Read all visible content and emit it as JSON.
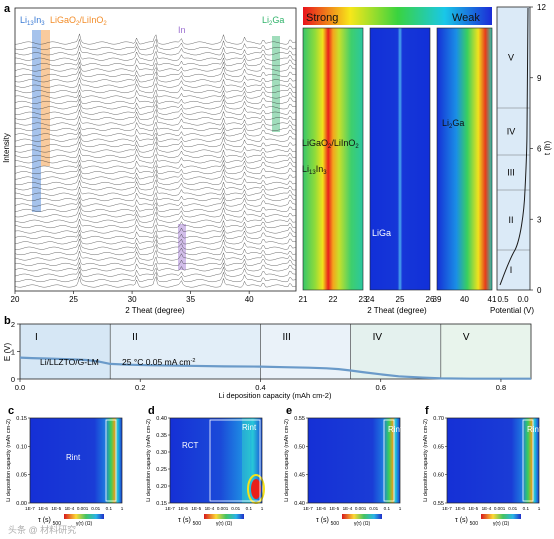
{
  "panel_labels": {
    "a": "a",
    "b": "b",
    "c": "c",
    "d": "d",
    "e": "e",
    "f": "f"
  },
  "colors": {
    "li13in3_band": "#3a7bd5",
    "ligao2_band": "#f28c28",
    "in_band": "#9b6fd0",
    "li2ga_band": "#2fb36a",
    "profile_line": "#6a9ac9",
    "region_fill": "#dbeaf7"
  },
  "panel_a": {
    "ylabel": "Intensity",
    "xlabel": "2 Theat (degree)",
    "xticks": [
      "20",
      "25",
      "30",
      "35",
      "40"
    ],
    "phase_labels": {
      "li13in3": "Li13In3",
      "ligao2": "LiGaO2/LiInO2",
      "in": "In",
      "li2ga": "Li2Ga"
    },
    "heatmap_legend": {
      "strong": "Strong",
      "weak": "Weak"
    },
    "heatmap_labels": {
      "ligao2": "LiGaO2/LiInO2",
      "li13in3": "Li13In3",
      "liga": "LiGa",
      "li2ga": "Li2Ga"
    },
    "heatmap_xlabel": "2 Theat (degree)",
    "heatmap1_xticks": [
      "21",
      "22",
      "23"
    ],
    "heatmap2_xticks": [
      "24",
      "25",
      "26"
    ],
    "heatmap3_xticks": [
      "39",
      "40",
      "41"
    ],
    "potential": {
      "xlabel": "Potential (V)",
      "xticks": [
        "0.5",
        "0.0"
      ],
      "ylabel": "t (h)",
      "yticks": [
        "0",
        "3",
        "6",
        "9",
        "12"
      ],
      "regions": [
        "I",
        "II",
        "III",
        "IV",
        "V"
      ]
    }
  },
  "chart_data": [
    {
      "type": "line",
      "panel": "b",
      "xlabel": "Li deposition capacity (mAh cm-2)",
      "ylabel": "E (V)",
      "xlim": [
        0,
        0.85
      ],
      "ylim": [
        0,
        2
      ],
      "xticks": [
        "0.0",
        "0.2",
        "0.4",
        "0.6",
        "0.8"
      ],
      "yticks": [
        "0",
        "1",
        "2"
      ],
      "annotation": "Li/LLZTO/G-LM",
      "conditions": "25 °C  0.05 mA cm-2",
      "regions": [
        "I",
        "II",
        "III",
        "IV",
        "V"
      ],
      "region_bounds": [
        0,
        0.15,
        0.4,
        0.55,
        0.7,
        0.85
      ],
      "x": [
        0,
        0.02,
        0.05,
        0.08,
        0.11,
        0.13,
        0.15,
        0.18,
        0.22,
        0.28,
        0.34,
        0.4,
        0.44,
        0.48,
        0.51,
        0.53,
        0.55,
        0.57,
        0.6,
        0.63,
        0.67,
        0.7,
        0.75,
        0.8,
        0.85
      ],
      "y": [
        0.78,
        0.76,
        0.74,
        0.72,
        0.69,
        0.64,
        0.55,
        0.52,
        0.5,
        0.48,
        0.46,
        0.45,
        0.43,
        0.41,
        0.39,
        0.36,
        0.31,
        0.25,
        0.17,
        0.1,
        0.05,
        0.02,
        0.01,
        0.01,
        0.01
      ]
    },
    {
      "type": "heatmap",
      "panel": "c",
      "xlabel": "τ (s)",
      "ylabel": "Li deposition capacity (mAh cm-2)",
      "ylim": [
        0.0,
        0.15
      ],
      "yticks": [
        "0.00",
        "0.05",
        "0.10",
        "0.15"
      ],
      "xticks": [
        "1E-7",
        "1E-6",
        "1E-5",
        "1E-4",
        "0.001",
        "0.01",
        "0.1",
        "1"
      ],
      "label": "Rint",
      "colorbar": {
        "min": "500",
        "label": "γ(τ) (Ω)"
      }
    },
    {
      "type": "heatmap",
      "panel": "d",
      "xlabel": "τ (s)",
      "ylabel": "Li deposition capacity (mAh cm-2)",
      "ylim": [
        0.15,
        0.4
      ],
      "yticks": [
        "0.15",
        "0.20",
        "0.25",
        "0.30",
        "0.35",
        "0.40"
      ],
      "xticks": [
        "1E-7",
        "1E-6",
        "1E-5",
        "1E-4",
        "0.001",
        "0.01",
        "0.1",
        "1"
      ],
      "labels": [
        "RCT",
        "Rint"
      ],
      "colorbar": {
        "min": "500",
        "label": "γ(τ) (Ω)"
      }
    },
    {
      "type": "heatmap",
      "panel": "e",
      "xlabel": "τ (s)",
      "ylabel": "Li deposition capacity (mAh cm-2)",
      "ylim": [
        0.4,
        0.55
      ],
      "yticks": [
        "0.40",
        "0.45",
        "0.50",
        "0.55"
      ],
      "xticks": [
        "1E-7",
        "1E-6",
        "1E-5",
        "1E-4",
        "0.001",
        "0.01",
        "0.1",
        "1"
      ],
      "label": "Rint",
      "colorbar": {
        "min": "500",
        "label": "γ(τ) (Ω)"
      }
    },
    {
      "type": "heatmap",
      "panel": "f",
      "xlabel": "τ (s)",
      "ylabel": "Li deposition capacity (mAh cm-2)",
      "ylim": [
        0.55,
        0.7
      ],
      "yticks": [
        "0.55",
        "0.60",
        "0.65",
        "0.70"
      ],
      "xticks": [
        "1E-7",
        "1E-6",
        "1E-5",
        "1E-4",
        "0.001",
        "0.01",
        "0.1",
        "1"
      ],
      "label": "Rint",
      "colorbar": {
        "min": "500",
        "label": "γ(τ) (Ω)"
      }
    }
  ]
}
